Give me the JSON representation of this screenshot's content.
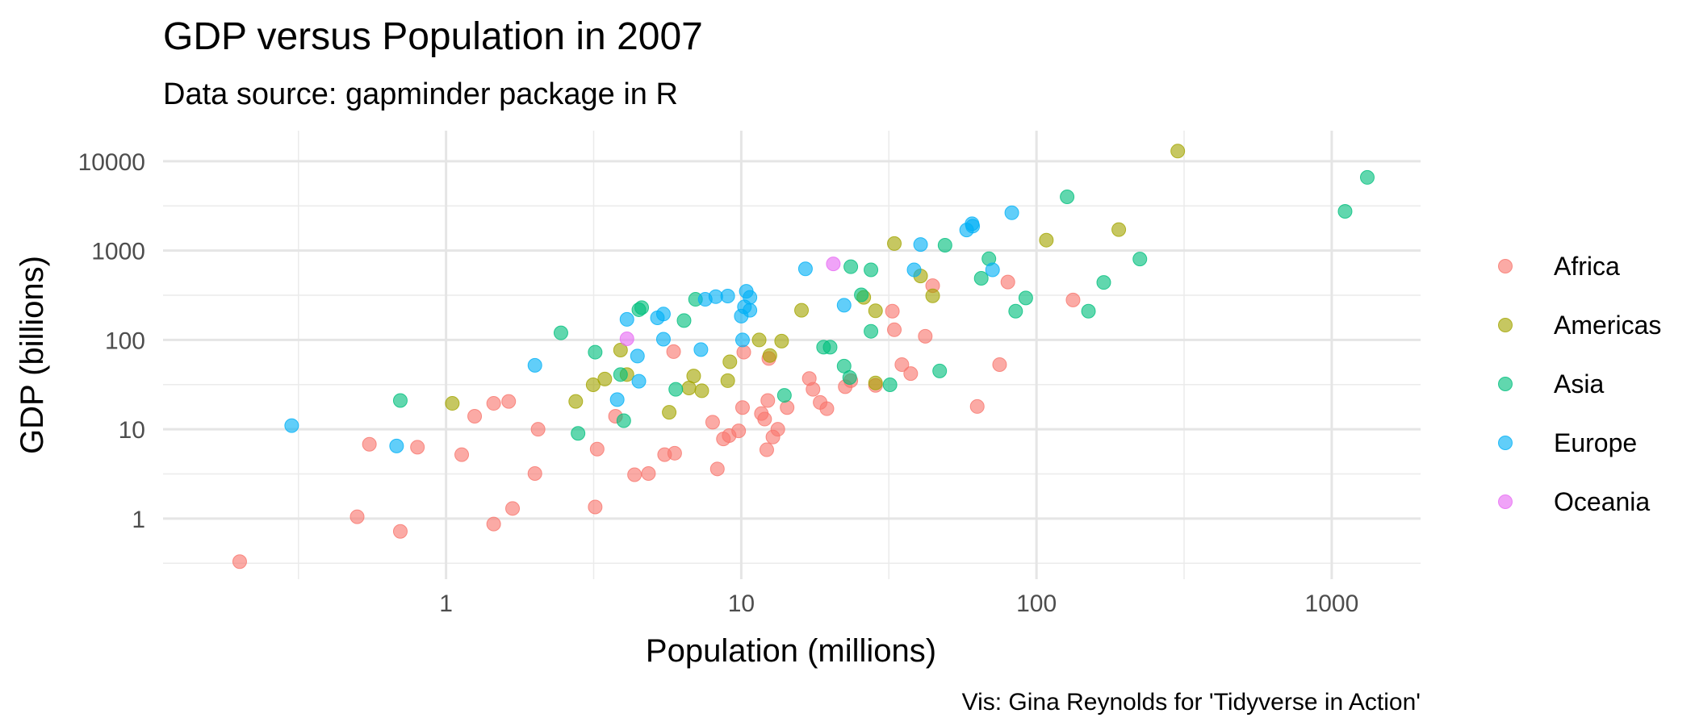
{
  "chart_data": {
    "type": "scatter",
    "title": "GDP versus Population in 2007",
    "subtitle": "Data source: gapminder package in R",
    "xlabel": "Population (millions)",
    "ylabel": "GDP (billions)",
    "caption": "Vis: Gina Reynolds for 'Tidyverse in Action'",
    "x_scale": "log10",
    "y_scale": "log10",
    "xlim": [
      0.11,
      2000
    ],
    "ylim": [
      0.21,
      22000
    ],
    "x_ticks": [
      1,
      10,
      100,
      1000
    ],
    "x_tick_labels": [
      "1",
      "10",
      "100",
      "1000"
    ],
    "y_ticks": [
      1,
      10,
      100,
      1000,
      10000
    ],
    "y_tick_labels": [
      "1",
      "10",
      "100",
      "1000",
      "10000"
    ],
    "grid": true,
    "legend_position": "right",
    "legend": [
      "Africa",
      "Americas",
      "Asia",
      "Europe",
      "Oceania"
    ],
    "colors": {
      "Africa": "#F8766D",
      "Americas": "#A3A500",
      "Asia": "#00BF7D",
      "Europe": "#00B0F6",
      "Oceania": "#E76BF3"
    },
    "series": [
      {
        "name": "Africa",
        "points": [
          [
            0.2,
            0.33
          ],
          [
            0.5,
            1.05
          ],
          [
            0.55,
            6.8
          ],
          [
            0.7,
            0.72
          ],
          [
            0.8,
            6.3
          ],
          [
            1.13,
            5.2
          ],
          [
            1.25,
            14
          ],
          [
            1.45,
            19.5
          ],
          [
            1.45,
            0.87
          ],
          [
            1.63,
            20.5
          ],
          [
            1.68,
            1.3
          ],
          [
            2.0,
            3.2
          ],
          [
            2.05,
            10
          ],
          [
            3.2,
            1.35
          ],
          [
            3.25,
            6.0
          ],
          [
            3.75,
            14
          ],
          [
            4.35,
            3.1
          ],
          [
            4.85,
            3.2
          ],
          [
            5.5,
            5.2
          ],
          [
            5.9,
            74
          ],
          [
            5.95,
            5.4
          ],
          [
            8.0,
            12
          ],
          [
            8.3,
            3.6
          ],
          [
            8.7,
            7.8
          ],
          [
            9.1,
            8.5
          ],
          [
            9.8,
            9.6
          ],
          [
            10.1,
            17.5
          ],
          [
            10.2,
            73
          ],
          [
            11.7,
            15
          ],
          [
            12.0,
            13
          ],
          [
            12.2,
            5.9
          ],
          [
            12.3,
            21
          ],
          [
            12.4,
            62
          ],
          [
            12.8,
            8.2
          ],
          [
            13.3,
            10
          ],
          [
            14.3,
            17.5
          ],
          [
            17.0,
            37
          ],
          [
            17.5,
            28
          ],
          [
            18.5,
            20
          ],
          [
            19.5,
            17
          ],
          [
            22.5,
            30
          ],
          [
            23.5,
            35
          ],
          [
            28.5,
            31
          ],
          [
            32.5,
            210
          ],
          [
            33.0,
            130
          ],
          [
            35.0,
            53
          ],
          [
            37.5,
            42
          ],
          [
            42.0,
            110
          ],
          [
            44.5,
            405
          ],
          [
            63.0,
            18
          ],
          [
            75.0,
            53
          ],
          [
            80.0,
            445
          ],
          [
            133.0,
            280
          ]
        ]
      },
      {
        "name": "Americas",
        "points": [
          [
            1.05,
            19.5
          ],
          [
            2.75,
            20.5
          ],
          [
            3.15,
            31.5
          ],
          [
            3.45,
            36.5
          ],
          [
            3.9,
            77
          ],
          [
            4.1,
            41
          ],
          [
            5.7,
            15.5
          ],
          [
            6.65,
            29
          ],
          [
            6.9,
            39.5
          ],
          [
            7.35,
            27
          ],
          [
            9.0,
            35
          ],
          [
            9.15,
            57
          ],
          [
            11.5,
            100
          ],
          [
            12.5,
            67
          ],
          [
            13.7,
            97
          ],
          [
            16.0,
            215
          ],
          [
            26.0,
            300
          ],
          [
            28.5,
            212
          ],
          [
            28.5,
            33
          ],
          [
            33.0,
            1200
          ],
          [
            40.5,
            520
          ],
          [
            44.5,
            312
          ],
          [
            108.0,
            1310
          ],
          [
            190.0,
            1720
          ],
          [
            301.0,
            13000
          ]
        ]
      },
      {
        "name": "Asia",
        "points": [
          [
            0.7,
            21
          ],
          [
            2.45,
            120
          ],
          [
            2.8,
            9.0
          ],
          [
            3.2,
            73
          ],
          [
            3.9,
            41
          ],
          [
            4.0,
            12.5
          ],
          [
            4.5,
            218
          ],
          [
            4.6,
            230
          ],
          [
            6.0,
            28
          ],
          [
            6.4,
            165
          ],
          [
            7.0,
            285
          ],
          [
            14.0,
            24
          ],
          [
            19.0,
            83
          ],
          [
            20.0,
            83
          ],
          [
            22.3,
            51
          ],
          [
            23.3,
            38
          ],
          [
            23.5,
            660
          ],
          [
            27.5,
            610
          ],
          [
            27.5,
            125
          ],
          [
            25.5,
            320
          ],
          [
            31.9,
            31.5
          ],
          [
            47.0,
            45
          ],
          [
            49.0,
            1150
          ],
          [
            65.0,
            490
          ],
          [
            69.0,
            810
          ],
          [
            85.0,
            210
          ],
          [
            92.0,
            295
          ],
          [
            127.0,
            4000
          ],
          [
            150.0,
            210
          ],
          [
            169.0,
            440
          ],
          [
            224.0,
            805
          ],
          [
            1110.0,
            2750
          ],
          [
            1320.0,
            6600
          ]
        ]
      },
      {
        "name": "Europe",
        "points": [
          [
            0.3,
            11
          ],
          [
            0.68,
            6.5
          ],
          [
            2.0,
            52
          ],
          [
            3.8,
            21.5
          ],
          [
            4.1,
            170
          ],
          [
            4.45,
            66
          ],
          [
            4.5,
            34.5
          ],
          [
            5.2,
            177
          ],
          [
            5.45,
            195
          ],
          [
            5.45,
            102
          ],
          [
            7.3,
            78
          ],
          [
            7.55,
            285
          ],
          [
            8.2,
            305
          ],
          [
            9.0,
            310
          ],
          [
            10.0,
            185
          ],
          [
            10.1,
            100
          ],
          [
            10.25,
            235
          ],
          [
            10.4,
            350
          ],
          [
            10.7,
            215
          ],
          [
            10.7,
            300
          ],
          [
            16.5,
            625
          ],
          [
            22.3,
            245
          ],
          [
            38.5,
            610
          ],
          [
            40.5,
            1170
          ],
          [
            58.0,
            1700
          ],
          [
            60.5,
            2000
          ],
          [
            60.8,
            1880
          ],
          [
            71.0,
            610
          ],
          [
            82.5,
            2650
          ]
        ]
      },
      {
        "name": "Oceania",
        "points": [
          [
            4.1,
            103
          ],
          [
            20.5,
            710
          ]
        ]
      }
    ]
  }
}
